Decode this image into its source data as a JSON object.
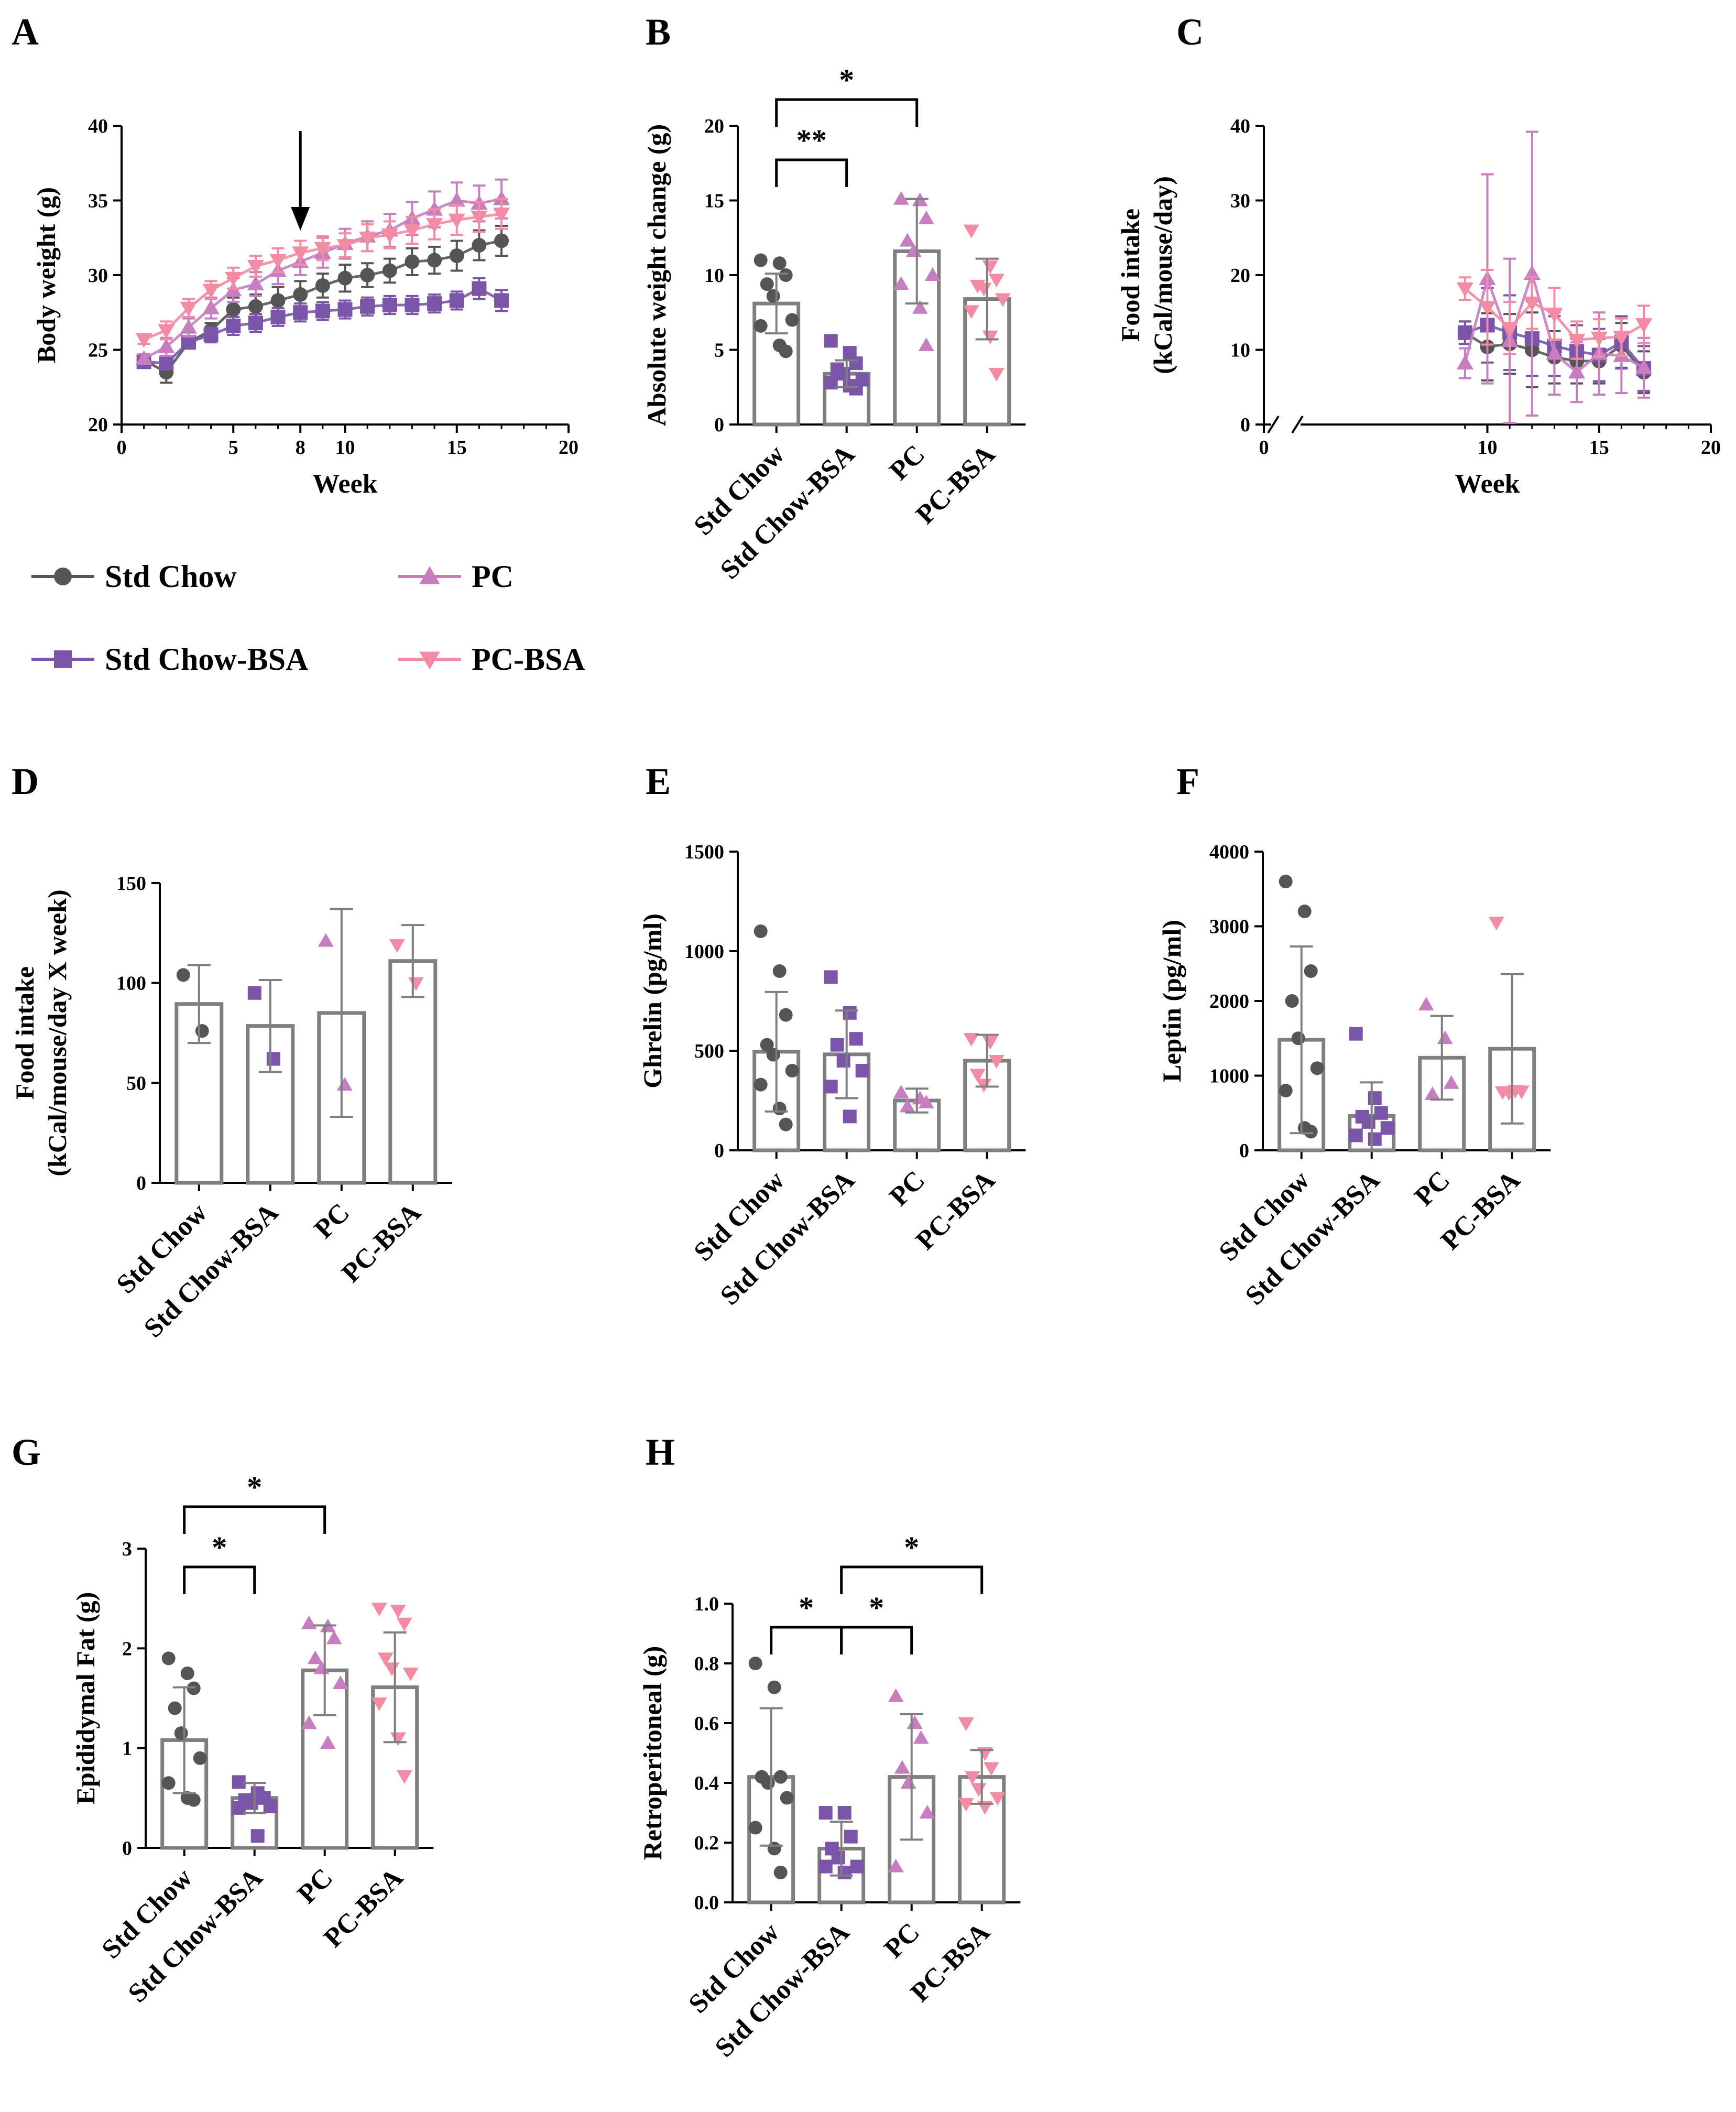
{
  "colors": {
    "std_chow": "#555555",
    "std_chow_bsa": "#7B55A8",
    "pc": "#C77DC0",
    "pc_bsa": "#F28BA3",
    "bar_outline": "#7F7F7F",
    "axis": "#000000"
  },
  "legend": {
    "items": [
      {
        "label": "Std Chow",
        "color": "#555555",
        "marker": "circle"
      },
      {
        "label": "PC",
        "color": "#C77DC0",
        "marker": "triangle-up"
      },
      {
        "label": "Std Chow-BSA",
        "color": "#7B55A8",
        "marker": "square"
      },
      {
        "label": "PC-BSA",
        "color": "#F28BA3",
        "marker": "triangle-down"
      }
    ]
  },
  "chart_data": [
    {
      "id": "A",
      "panel_label": "A",
      "type": "line",
      "title": "",
      "xlabel": "Week",
      "ylabel": "Body weight (g)",
      "xlim": [
        0,
        20
      ],
      "ylim": [
        20,
        40
      ],
      "xticks": [
        0,
        5,
        8,
        10,
        15,
        20
      ],
      "yticks": [
        20,
        25,
        30,
        35,
        40
      ],
      "arrow_at_week": 8,
      "x": [
        1,
        2,
        3,
        4,
        5,
        6,
        7,
        8,
        9,
        10,
        11,
        12,
        13,
        14,
        15,
        16,
        17
      ],
      "series": [
        {
          "name": "Std Chow",
          "color": "#555555",
          "marker": "circle",
          "values": [
            24.3,
            23.5,
            25.5,
            26.3,
            27.7,
            27.9,
            28.3,
            28.7,
            29.3,
            29.8,
            30.0,
            30.3,
            30.9,
            31.0,
            31.3,
            32.0,
            32.3
          ],
          "err": [
            0.3,
            0.7,
            0.4,
            0.5,
            0.8,
            0.8,
            0.9,
            0.9,
            0.8,
            0.9,
            0.8,
            0.8,
            0.9,
            0.9,
            1.0,
            1.0,
            1.0
          ]
        },
        {
          "name": "Std Chow-BSA",
          "color": "#7B55A8",
          "marker": "square",
          "values": [
            24.2,
            24.1,
            25.5,
            26.0,
            26.6,
            26.8,
            27.2,
            27.5,
            27.6,
            27.7,
            27.9,
            28.0,
            28.0,
            28.1,
            28.3,
            29.1,
            28.3
          ],
          "err": [
            0.2,
            0.4,
            0.4,
            0.5,
            0.6,
            0.6,
            0.6,
            0.6,
            0.6,
            0.6,
            0.6,
            0.6,
            0.6,
            0.6,
            0.6,
            0.7,
            0.7
          ]
        },
        {
          "name": "PC",
          "color": "#C77DC0",
          "marker": "triangle-up",
          "values": [
            24.4,
            25.2,
            26.5,
            27.8,
            29.0,
            29.4,
            30.3,
            30.9,
            31.5,
            32.1,
            32.6,
            33.0,
            33.8,
            34.4,
            35.0,
            34.8,
            35.1
          ],
          "err": [
            0.3,
            0.6,
            0.6,
            0.7,
            0.8,
            0.8,
            0.9,
            0.9,
            1.0,
            1.0,
            1.0,
            1.1,
            1.1,
            1.2,
            1.2,
            1.2,
            1.3
          ]
        },
        {
          "name": "PC-BSA",
          "color": "#F28BA3",
          "marker": "triangle-down",
          "values": [
            25.7,
            26.3,
            27.8,
            29.0,
            29.8,
            30.6,
            31.0,
            31.5,
            31.8,
            32.0,
            32.5,
            32.7,
            33.0,
            33.4,
            33.7,
            33.9,
            34.1
          ],
          "err": [
            0.3,
            0.6,
            0.6,
            0.6,
            0.7,
            0.7,
            0.8,
            0.8,
            0.8,
            0.8,
            0.9,
            0.9,
            0.9,
            1.0,
            1.0,
            1.0,
            1.0
          ]
        }
      ]
    },
    {
      "id": "B",
      "panel_label": "B",
      "type": "bar",
      "xlabel": "",
      "ylabel": "Absolute weight change (g)",
      "ylim": [
        0,
        20
      ],
      "yticks": [
        0,
        5,
        10,
        15,
        20
      ],
      "categories": [
        "Std Chow",
        "Std Chow-BSA",
        "PC",
        "PC-BSA"
      ],
      "values": [
        8.1,
        3.4,
        11.6,
        8.4
      ],
      "err": [
        2.0,
        0.9,
        3.5,
        2.7
      ],
      "points": [
        [
          11.0,
          10.8,
          10.0,
          9.4,
          8.6,
          7.0,
          6.6,
          5.3,
          4.9
        ],
        [
          5.6,
          4.8,
          4.1,
          3.7,
          3.4,
          3.0,
          2.8,
          2.6,
          2.4
        ],
        [
          15.1,
          15.0,
          13.8,
          12.3,
          11.6,
          10.0,
          9.4,
          7.8,
          5.3
        ],
        [
          13.0,
          10.6,
          9.7,
          9.3,
          9.1,
          8.4,
          7.6,
          5.9,
          3.4
        ]
      ],
      "significance": [
        {
          "from": 0,
          "to": 1,
          "label": "**"
        },
        {
          "from": 0,
          "to": 2,
          "label": "*"
        }
      ]
    },
    {
      "id": "C",
      "panel_label": "C",
      "type": "line",
      "xlabel": "Week",
      "ylabel": "Food intake (kCal/mouse/day)",
      "ylabel_lines": [
        "Food intake",
        "(kCal/mouse/day)"
      ],
      "xlim": [
        0,
        20
      ],
      "ylim": [
        0,
        40
      ],
      "axis_break": true,
      "xticks": [
        0,
        10,
        15,
        20
      ],
      "yticks": [
        0,
        10,
        20,
        30,
        40
      ],
      "x": [
        9,
        10,
        11,
        12,
        13,
        14,
        15,
        16,
        17
      ],
      "series": [
        {
          "name": "Std Chow",
          "color": "#555555",
          "marker": "circle",
          "values": [
            12.3,
            10.4,
            10.8,
            10.0,
            9.0,
            8.5,
            8.5,
            10.6,
            7.0
          ],
          "err": [
            1.5,
            4.5,
            4.0,
            5.0,
            3.5,
            3.0,
            3.0,
            3.0,
            2.8
          ]
        },
        {
          "name": "Std Chow-BSA",
          "color": "#7B55A8",
          "marker": "square",
          "values": [
            12.3,
            13.3,
            12.3,
            11.5,
            10.5,
            9.8,
            9.3,
            11.0,
            7.5
          ],
          "err": [
            1.5,
            5.0,
            5.0,
            5.0,
            4.0,
            3.5,
            3.5,
            3.5,
            3.0
          ]
        },
        {
          "name": "PC",
          "color": "#C77DC0",
          "marker": "triangle-up",
          "values": [
            8.2,
            19.5,
            11.2,
            20.2,
            9.5,
            7.0,
            9.5,
            9.2,
            7.6
          ],
          "err": [
            2.0,
            14.0,
            11.0,
            19.0,
            5.5,
            4.0,
            5.5,
            5.0,
            4.0
          ]
        },
        {
          "name": "PC-BSA",
          "color": "#F28BA3",
          "marker": "triangle-down",
          "values": [
            18.2,
            15.7,
            12.9,
            16.3,
            14.8,
            11.3,
            11.6,
            11.7,
            13.4
          ],
          "err": [
            1.5,
            5.0,
            3.5,
            3.5,
            3.5,
            2.5,
            2.5,
            2.5,
            2.5
          ]
        }
      ]
    },
    {
      "id": "D",
      "panel_label": "D",
      "type": "bar",
      "xlabel": "",
      "ylabel": "Food intake (kCal/mouse/day X week)",
      "ylabel_lines": [
        "Food intake",
        "(kCal/mouse/day X week)"
      ],
      "ylim": [
        0,
        150
      ],
      "yticks": [
        0,
        50,
        100,
        150
      ],
      "categories": [
        "Std Chow",
        "Std Chow-BSA",
        "PC",
        "PC-BSA"
      ],
      "values": [
        89.5,
        78.5,
        85.0,
        111.0
      ],
      "err": [
        19.5,
        23.0,
        52.0,
        18.0
      ],
      "points": [
        [
          104,
          76
        ],
        [
          95,
          62
        ],
        [
          121,
          49
        ],
        [
          119,
          100
        ]
      ],
      "significance": []
    },
    {
      "id": "E",
      "panel_label": "E",
      "type": "bar",
      "xlabel": "",
      "ylabel": "Ghrelin (pg/ml)",
      "ylim": [
        0,
        1500
      ],
      "yticks": [
        0,
        500,
        1000,
        1500
      ],
      "categories": [
        "Std Chow",
        "Std Chow-BSA",
        "PC",
        "PC-BSA"
      ],
      "values": [
        495,
        482,
        250,
        450
      ],
      "err": [
        300,
        220,
        60,
        130
      ],
      "points": [
        [
          1100,
          900,
          680,
          530,
          480,
          400,
          330,
          210,
          130
        ],
        [
          870,
          690,
          560,
          530,
          450,
          400,
          320,
          170
        ],
        [
          290,
          260,
          240,
          220
        ],
        [
          560,
          545,
          450,
          380,
          330
        ]
      ],
      "significance": []
    },
    {
      "id": "F",
      "panel_label": "F",
      "type": "bar",
      "xlabel": "",
      "ylabel": "Leptin (pg/ml)",
      "ylim": [
        0,
        4000
      ],
      "yticks": [
        0,
        1000,
        2000,
        3000,
        4000
      ],
      "categories": [
        "Std Chow",
        "Std Chow-BSA",
        "PC",
        "PC-BSA"
      ],
      "values": [
        1480,
        460,
        1240,
        1360
      ],
      "err": [
        1250,
        450,
        560,
        1000
      ],
      "points": [
        [
          3600,
          3200,
          2400,
          2000,
          1500,
          1100,
          800,
          300,
          250
        ],
        [
          1560,
          700,
          500,
          450,
          380,
          300,
          200,
          150
        ],
        [
          1950,
          1500,
          900,
          750
        ],
        [
          3050,
          800,
          790,
          780,
          770
        ]
      ],
      "significance": []
    },
    {
      "id": "G",
      "panel_label": "G",
      "type": "bar",
      "xlabel": "",
      "ylabel": "Epididymal Fat (g)",
      "ylim": [
        0,
        3
      ],
      "yticks": [
        0,
        1,
        2,
        3
      ],
      "categories": [
        "Std Chow",
        "Std Chow-BSA",
        "PC",
        "PC-BSA"
      ],
      "values": [
        1.08,
        0.5,
        1.78,
        1.61
      ],
      "err": [
        0.53,
        0.15,
        0.45,
        0.55
      ],
      "points": [
        [
          1.9,
          1.75,
          1.6,
          1.4,
          1.15,
          0.9,
          0.65,
          0.5,
          0.48
        ],
        [
          0.66,
          0.55,
          0.5,
          0.48,
          0.45,
          0.42,
          0.4,
          0.12
        ],
        [
          2.25,
          2.22,
          2.1,
          1.9,
          1.8,
          1.65,
          1.25,
          1.05
        ],
        [
          2.4,
          2.38,
          2.25,
          1.9,
          1.8,
          1.75,
          1.45,
          1.1,
          0.72
        ]
      ],
      "significance": [
        {
          "from": 0,
          "to": 1,
          "label": "*"
        },
        {
          "from": 0,
          "to": 2,
          "label": "*"
        }
      ]
    },
    {
      "id": "H",
      "panel_label": "H",
      "type": "bar",
      "xlabel": "",
      "ylabel": "Retroperitoneal (g)",
      "ylim": [
        0,
        1.0
      ],
      "yticks": [
        0.0,
        0.2,
        0.4,
        0.6,
        0.8,
        1.0
      ],
      "categories": [
        "Std Chow",
        "Std Chow-BSA",
        "PC",
        "PC-BSA"
      ],
      "values": [
        0.42,
        0.18,
        0.42,
        0.42
      ],
      "err": [
        0.23,
        0.09,
        0.21,
        0.09
      ],
      "points": [
        [
          0.8,
          0.72,
          0.42,
          0.42,
          0.4,
          0.35,
          0.25,
          0.18,
          0.1
        ],
        [
          0.3,
          0.3,
          0.22,
          0.18,
          0.15,
          0.12,
          0.12,
          0.1
        ],
        [
          0.69,
          0.6,
          0.55,
          0.45,
          0.4,
          0.3,
          0.12
        ],
        [
          0.6,
          0.5,
          0.45,
          0.42,
          0.38,
          0.35,
          0.33,
          0.32
        ]
      ],
      "significance": [
        {
          "from": 0,
          "to": 1,
          "label": "*"
        },
        {
          "from": 1,
          "to": 2,
          "label": "*"
        },
        {
          "from": 1,
          "to": 3,
          "label": "*"
        }
      ]
    }
  ]
}
